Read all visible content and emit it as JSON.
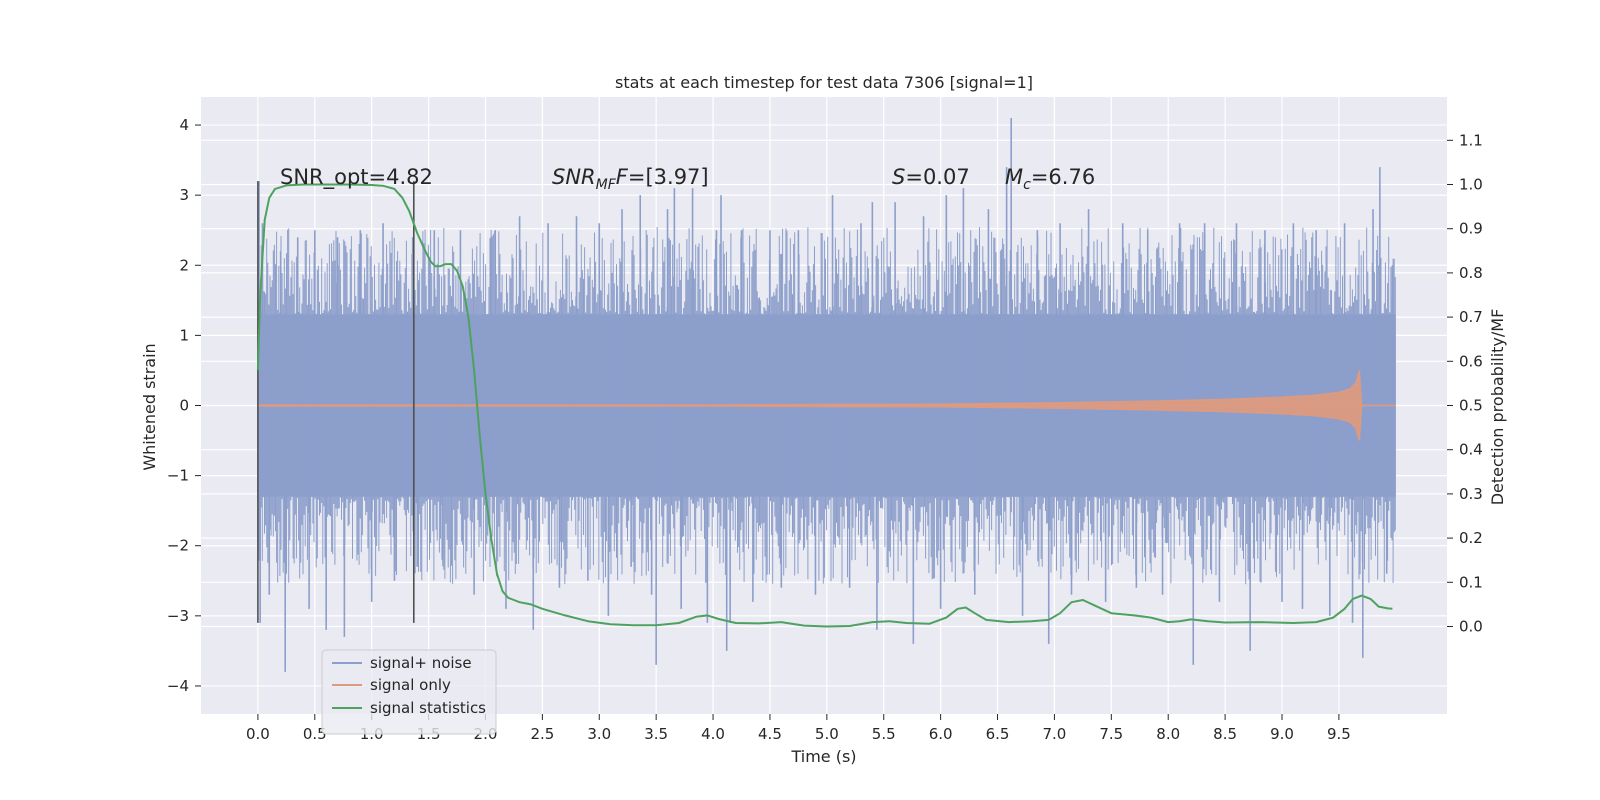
{
  "chart_data": {
    "type": "line",
    "title": "stats at each timestep for test data 7306 [signal=1]",
    "xlabel": "Time (s)",
    "ylabel": "Whitened strain",
    "y2label": "Detection probability/MF",
    "xlim": [
      -0.5,
      10.45
    ],
    "ylim": [
      -4.4,
      4.4
    ],
    "y2lim": [
      -0.198,
      1.198
    ],
    "xticks": [
      0.0,
      0.5,
      1.0,
      1.5,
      2.0,
      2.5,
      3.0,
      3.5,
      4.0,
      4.5,
      5.0,
      5.5,
      6.0,
      6.5,
      7.0,
      7.5,
      8.0,
      8.5,
      9.0,
      9.5
    ],
    "xtick_labels": [
      "0.0",
      "0.5",
      "1.0",
      "1.5",
      "2.0",
      "2.5",
      "3.0",
      "3.5",
      "4.0",
      "4.5",
      "5.0",
      "5.5",
      "6.0",
      "6.5",
      "7.0",
      "7.5",
      "8.0",
      "8.5",
      "9.0",
      "9.5"
    ],
    "yticks": [
      4,
      3,
      2,
      1,
      0,
      -1,
      -2,
      -3,
      -4
    ],
    "ytick_labels": [
      "4",
      "3",
      "2",
      "1",
      "0",
      "−1",
      "−2",
      "−3",
      "−4"
    ],
    "y2ticks": [
      1.1,
      1.0,
      0.9,
      0.8,
      0.7,
      0.6,
      0.5,
      0.4,
      0.3,
      0.2,
      0.1,
      0.0
    ],
    "y2tick_labels": [
      "1.1",
      "1.0",
      "0.9",
      "0.8",
      "0.7",
      "0.6",
      "0.5",
      "0.4",
      "0.3",
      "0.2",
      "0.1",
      "0.0"
    ],
    "grid": true,
    "legend_position": "lower-left",
    "annotations": {
      "snr_opt": "SNR_opt=4.82",
      "snr_mf_name": "SNR",
      "snr_mf_sub": "MF",
      "snr_mf_value": "=[3.97]",
      "s_name": "S",
      "s_value": "=0.07",
      "mc_name": "M",
      "mc_sub": "c",
      "mc_value": "=6.76"
    },
    "vertical_lines": [
      {
        "x": 0.0,
        "y": [
          -3.1,
          3.2
        ]
      },
      {
        "x": 1.37,
        "y": [
          -3.1,
          3.2
        ]
      }
    ],
    "series": [
      {
        "name": "signal+ noise",
        "color": "#8c9fcb",
        "x_start": 0.0,
        "x_end": 10.0,
        "band": [
          -1.3,
          1.3
        ],
        "extremes": [
          [
            0.01,
            3.2
          ],
          [
            0.02,
            -3.1
          ],
          [
            0.04,
            2.6
          ],
          [
            0.1,
            -2.7
          ],
          [
            0.2,
            2.2
          ],
          [
            0.24,
            -3.8
          ],
          [
            0.35,
            2.4
          ],
          [
            0.45,
            -2.9
          ],
          [
            0.5,
            2.5
          ],
          [
            0.6,
            -3.2
          ],
          [
            0.7,
            2.4
          ],
          [
            0.76,
            -3.3
          ],
          [
            0.9,
            2.5
          ],
          [
            1.0,
            -2.8
          ],
          [
            1.1,
            2.6
          ],
          [
            1.2,
            -2.5
          ],
          [
            1.36,
            2.4
          ],
          [
            1.4,
            -2.3
          ],
          [
            1.55,
            2.5
          ],
          [
            1.62,
            -2.2
          ],
          [
            1.78,
            2.5
          ],
          [
            1.9,
            -2.7
          ],
          [
            2.05,
            2.4
          ],
          [
            2.18,
            -2.9
          ],
          [
            2.3,
            2.7
          ],
          [
            2.42,
            -3.2
          ],
          [
            2.55,
            2.6
          ],
          [
            2.65,
            -2.6
          ],
          [
            2.8,
            2.7
          ],
          [
            2.9,
            -2.5
          ],
          [
            3.0,
            2.6
          ],
          [
            3.08,
            -3.0
          ],
          [
            3.2,
            2.8
          ],
          [
            3.28,
            -2.3
          ],
          [
            3.36,
            3.0
          ],
          [
            3.46,
            -2.7
          ],
          [
            3.5,
            -3.7
          ],
          [
            3.6,
            2.8
          ],
          [
            3.66,
            3.1
          ],
          [
            3.72,
            -2.9
          ],
          [
            3.82,
            3.1
          ],
          [
            3.95,
            -3.1
          ],
          [
            4.03,
            2.5
          ],
          [
            4.07,
            3.0
          ],
          [
            4.12,
            -3.5
          ],
          [
            4.15,
            -3.1
          ],
          [
            4.25,
            2.5
          ],
          [
            4.35,
            -2.8
          ],
          [
            4.5,
            2.5
          ],
          [
            4.6,
            -2.6
          ],
          [
            4.75,
            2.5
          ],
          [
            4.9,
            -2.7
          ],
          [
            5.05,
            3.0
          ],
          [
            5.2,
            -2.6
          ],
          [
            5.3,
            2.6
          ],
          [
            5.4,
            2.9
          ],
          [
            5.44,
            -3.2
          ],
          [
            5.6,
            2.9
          ],
          [
            5.76,
            -3.4
          ],
          [
            5.85,
            2.7
          ],
          [
            6.0,
            -2.9
          ],
          [
            6.05,
            3.0
          ],
          [
            6.2,
            3.1
          ],
          [
            6.3,
            -2.7
          ],
          [
            6.42,
            2.8
          ],
          [
            6.58,
            3.4
          ],
          [
            6.62,
            4.1
          ],
          [
            6.72,
            -3.0
          ],
          [
            6.85,
            2.5
          ],
          [
            6.95,
            -3.4
          ],
          [
            7.05,
            2.6
          ],
          [
            7.15,
            -2.7
          ],
          [
            7.3,
            2.8
          ],
          [
            7.45,
            -2.8
          ],
          [
            7.6,
            2.6
          ],
          [
            7.72,
            -2.6
          ],
          [
            7.82,
            2.5
          ],
          [
            7.95,
            -2.7
          ],
          [
            8.1,
            2.6
          ],
          [
            8.22,
            -3.7
          ],
          [
            8.32,
            2.6
          ],
          [
            8.45,
            -2.8
          ],
          [
            8.6,
            2.6
          ],
          [
            8.72,
            -3.5
          ],
          [
            8.85,
            2.5
          ],
          [
            9.0,
            -2.8
          ],
          [
            9.1,
            2.6
          ],
          [
            9.18,
            -2.9
          ],
          [
            9.3,
            2.5
          ],
          [
            9.42,
            -3.0
          ],
          [
            9.55,
            2.6
          ],
          [
            9.62,
            -3.1
          ],
          [
            9.71,
            -3.6
          ],
          [
            9.8,
            2.8
          ],
          [
            9.86,
            3.4
          ],
          [
            9.92,
            -2.4
          ],
          [
            9.97,
            2.0
          ]
        ]
      },
      {
        "name": "signal only",
        "color": "#dd9a80",
        "x": [
          0.0,
          4.0,
          5.0,
          6.0,
          7.0,
          8.0,
          8.5,
          9.0,
          9.3,
          9.5,
          9.6,
          9.65,
          9.67,
          9.68,
          9.7,
          10.0
        ],
        "amplitude": [
          0.01,
          0.01,
          0.015,
          0.02,
          0.04,
          0.07,
          0.09,
          0.12,
          0.15,
          0.19,
          0.24,
          0.33,
          0.45,
          0.5,
          0.0,
          0.0
        ]
      },
      {
        "name": "signal statistics",
        "color": "#4ea25f",
        "x": [
          0.0,
          0.02,
          0.06,
          0.1,
          0.15,
          0.25,
          0.4,
          0.6,
          0.8,
          1.0,
          1.1,
          1.2,
          1.27,
          1.33,
          1.4,
          1.47,
          1.52,
          1.56,
          1.6,
          1.65,
          1.7,
          1.75,
          1.8,
          1.85,
          1.9,
          1.95,
          2.0,
          2.05,
          2.1,
          2.15,
          2.2,
          2.25,
          2.3,
          2.4,
          2.5,
          2.7,
          2.9,
          3.1,
          3.3,
          3.5,
          3.7,
          3.85,
          3.95,
          4.05,
          4.2,
          4.4,
          4.6,
          4.8,
          5.0,
          5.2,
          5.4,
          5.55,
          5.7,
          5.9,
          6.05,
          6.15,
          6.22,
          6.3,
          6.4,
          6.6,
          6.8,
          6.95,
          7.05,
          7.15,
          7.25,
          7.35,
          7.5,
          7.7,
          7.85,
          8.0,
          8.1,
          8.2,
          8.35,
          8.5,
          8.8,
          9.1,
          9.3,
          9.45,
          9.55,
          9.62,
          9.7,
          9.78,
          9.85,
          9.93,
          9.97
        ],
        "values": [
          0.58,
          0.75,
          0.92,
          0.97,
          0.99,
          0.998,
          1.0,
          1.0,
          1.0,
          0.999,
          0.997,
          0.99,
          0.97,
          0.94,
          0.89,
          0.85,
          0.825,
          0.815,
          0.815,
          0.82,
          0.82,
          0.805,
          0.77,
          0.7,
          0.58,
          0.43,
          0.3,
          0.2,
          0.12,
          0.08,
          0.065,
          0.06,
          0.055,
          0.05,
          0.04,
          0.025,
          0.012,
          0.005,
          0.003,
          0.003,
          0.008,
          0.022,
          0.025,
          0.017,
          0.008,
          0.007,
          0.01,
          0.002,
          0.0,
          0.001,
          0.01,
          0.012,
          0.008,
          0.006,
          0.02,
          0.04,
          0.043,
          0.03,
          0.015,
          0.01,
          0.012,
          0.015,
          0.03,
          0.055,
          0.06,
          0.048,
          0.03,
          0.025,
          0.02,
          0.01,
          0.012,
          0.016,
          0.012,
          0.009,
          0.01,
          0.008,
          0.01,
          0.02,
          0.04,
          0.062,
          0.07,
          0.062,
          0.045,
          0.041,
          0.04
        ]
      }
    ]
  },
  "legend": {
    "items": [
      {
        "label": "signal+ noise",
        "color": "#8c9fcb"
      },
      {
        "label": "signal only",
        "color": "#dd9a80"
      },
      {
        "label": "signal statistics",
        "color": "#4ea25f"
      }
    ]
  },
  "colors": {
    "plot_background": "#eaeaf2",
    "grid": "#ffffff",
    "text": "#262626",
    "marker_line": "#505050"
  }
}
